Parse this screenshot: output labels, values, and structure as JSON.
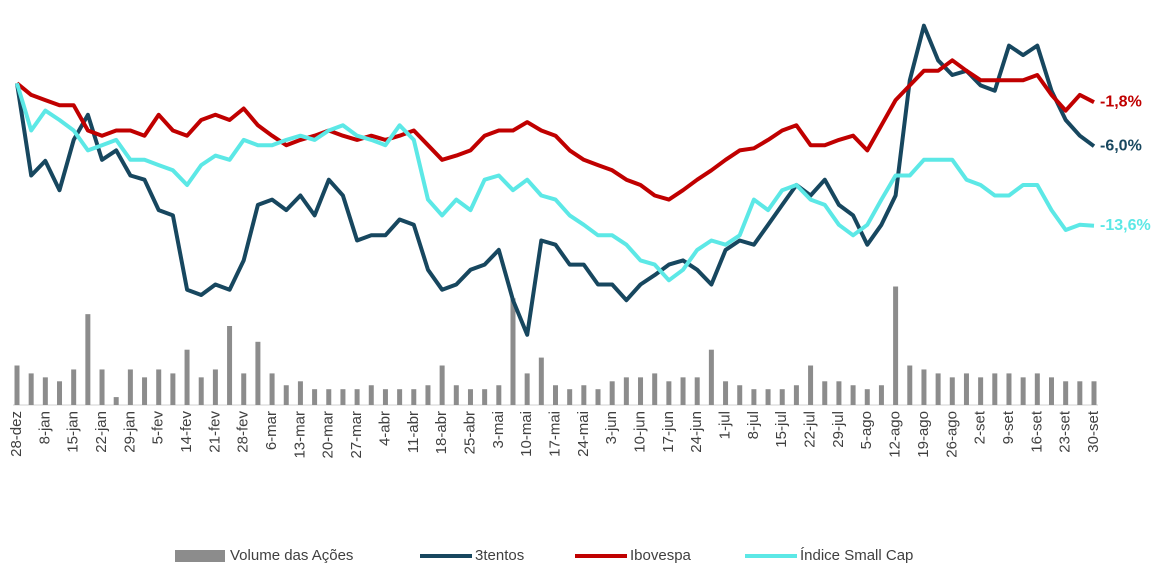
{
  "chart_data": {
    "type": "line",
    "categories": [
      "28-dez",
      null,
      "8-jan",
      null,
      "15-jan",
      null,
      "22-jan",
      null,
      "29-jan",
      null,
      "5-fev",
      null,
      "14-fev",
      null,
      "21-fev",
      null,
      "28-fev",
      null,
      "6-mar",
      null,
      "13-mar",
      null,
      "20-mar",
      null,
      "27-mar",
      null,
      "4-abr",
      null,
      "11-abr",
      null,
      "18-abr",
      null,
      "25-abr",
      null,
      "3-mai",
      null,
      "10-mai",
      null,
      "17-mai",
      null,
      "24-mai",
      null,
      "3-jun",
      null,
      "10-jun",
      null,
      "17-jun",
      null,
      "24-jun",
      null,
      "1-jul",
      null,
      "8-jul",
      null,
      "15-jul",
      null,
      "22-jul",
      null,
      "29-jul",
      null,
      "5-ago",
      null,
      "12-ago",
      null,
      "19-ago",
      null,
      "26-ago",
      null,
      "2-set",
      null,
      "9-set",
      null,
      "16-set",
      null,
      "23-set",
      null,
      "30-set"
    ],
    "ylim": [
      -30.7,
      7
    ],
    "y2lim": [
      0,
      100
    ],
    "series": [
      {
        "name": "Volume das Ações",
        "type": "bar",
        "axis": "y2",
        "color": "#8c8c8c",
        "values": [
          10,
          8,
          7,
          6,
          9,
          23,
          9,
          2,
          9,
          7,
          9,
          8,
          14,
          7,
          9,
          20,
          8,
          16,
          8,
          5,
          6,
          4,
          4,
          4,
          4,
          5,
          4,
          4,
          4,
          5,
          10,
          5,
          4,
          4,
          5,
          27,
          8,
          12,
          5,
          4,
          5,
          4,
          6,
          7,
          7,
          8,
          6,
          7,
          7,
          14,
          6,
          5,
          4,
          4,
          4,
          5,
          10,
          6,
          6,
          5,
          4,
          5,
          30,
          10,
          9,
          8,
          7,
          8,
          7,
          8,
          8,
          7,
          8,
          7,
          6,
          6,
          6
        ]
      },
      {
        "name": "3tentos",
        "type": "line",
        "color": "#17475f",
        "end_label": "-6,0%",
        "values": [
          0,
          -8.8,
          -7.4,
          -10.2,
          -5.4,
          -3.0,
          -7.3,
          -6.4,
          -8.8,
          -9.2,
          -12.1,
          -12.6,
          -19.7,
          -20.2,
          -19.2,
          -19.7,
          -16.9,
          -11.6,
          -11.1,
          -12.1,
          -10.7,
          -12.6,
          -9.2,
          -10.7,
          -15.0,
          -14.5,
          -14.5,
          -13.0,
          -13.5,
          -17.8,
          -19.7,
          -19.2,
          -17.8,
          -17.3,
          -15.9,
          -20.7,
          -24.0,
          -15.0,
          -15.4,
          -17.3,
          -17.3,
          -19.2,
          -19.2,
          -20.7,
          -19.2,
          -18.3,
          -17.3,
          -16.9,
          -17.8,
          -19.2,
          -15.9,
          -15.0,
          -15.4,
          -13.5,
          -11.6,
          -9.7,
          -10.7,
          -9.2,
          -11.6,
          -12.6,
          -15.4,
          -13.5,
          -10.7,
          0.3,
          5.5,
          2.2,
          0.8,
          1.2,
          -0.2,
          -0.7,
          3.6,
          2.7,
          3.6,
          -0.7,
          -3.5,
          -5.0,
          -6.0
        ]
      },
      {
        "name": "Ibovespa",
        "type": "line",
        "color": "#c00000",
        "end_label": "-1,8%",
        "values": [
          0,
          -1.1,
          -1.6,
          -2.1,
          -2.1,
          -4.5,
          -5.0,
          -4.5,
          -4.5,
          -5.0,
          -3.0,
          -4.5,
          -5.0,
          -3.5,
          -3.0,
          -3.5,
          -2.4,
          -4.0,
          -5.0,
          -5.9,
          -5.4,
          -5.0,
          -4.5,
          -5.0,
          -5.4,
          -5.0,
          -5.4,
          -5.0,
          -4.5,
          -5.9,
          -7.3,
          -6.9,
          -6.4,
          -5.0,
          -4.5,
          -4.5,
          -3.7,
          -4.5,
          -5.0,
          -6.4,
          -7.3,
          -7.8,
          -8.3,
          -9.2,
          -9.7,
          -10.7,
          -11.1,
          -10.2,
          -9.2,
          -8.3,
          -7.3,
          -6.4,
          -6.2,
          -5.4,
          -4.5,
          -4.0,
          -5.9,
          -5.9,
          -5.4,
          -5.0,
          -6.4,
          -4.0,
          -1.6,
          -0.2,
          1.2,
          1.2,
          2.2,
          1.2,
          0.3,
          0.3,
          0.3,
          0.3,
          0.8,
          -1.1,
          -2.6,
          -1.1,
          -1.8
        ]
      },
      {
        "name": "Índice Small Cap",
        "type": "line",
        "color": "#5ce8e6",
        "end_label": "-13,6%",
        "values": [
          0,
          -4.5,
          -2.6,
          -3.5,
          -4.5,
          -6.4,
          -5.9,
          -5.4,
          -7.3,
          -7.3,
          -7.8,
          -8.3,
          -9.7,
          -7.8,
          -6.9,
          -7.3,
          -5.4,
          -5.9,
          -5.9,
          -5.4,
          -5.0,
          -5.4,
          -4.5,
          -4.0,
          -5.0,
          -5.4,
          -5.9,
          -4.0,
          -5.4,
          -11.1,
          -12.6,
          -11.1,
          -12.1,
          -9.2,
          -8.8,
          -10.2,
          -9.2,
          -10.7,
          -11.1,
          -12.6,
          -13.5,
          -14.5,
          -14.5,
          -15.4,
          -16.9,
          -17.3,
          -18.8,
          -17.8,
          -15.9,
          -15.0,
          -15.4,
          -14.5,
          -11.1,
          -12.1,
          -10.2,
          -9.7,
          -11.1,
          -11.6,
          -13.5,
          -14.5,
          -13.5,
          -11.1,
          -8.8,
          -8.8,
          -7.3,
          -7.3,
          -7.3,
          -9.2,
          -9.7,
          -10.7,
          -10.7,
          -9.7,
          -9.7,
          -12.1,
          -14.0,
          -13.5,
          -13.6
        ]
      }
    ],
    "legend": "bottom"
  }
}
